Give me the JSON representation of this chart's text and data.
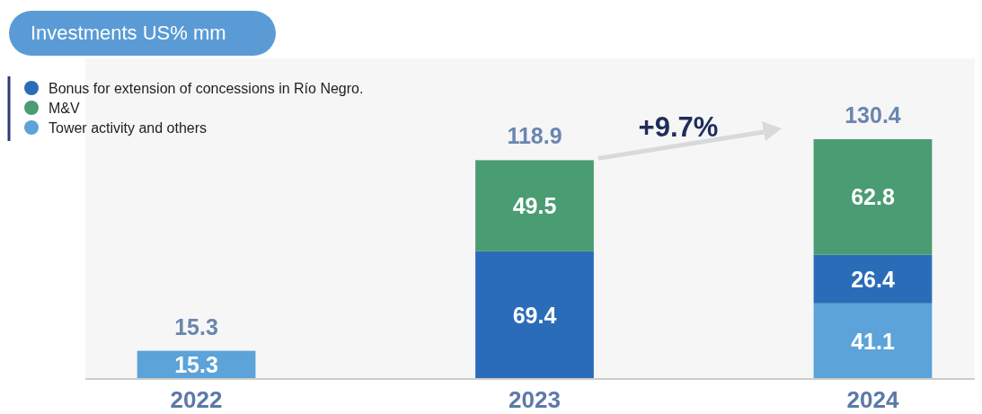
{
  "chart_data": {
    "type": "bar",
    "title": "Investments US% mm",
    "categories": [
      "2022",
      "2023",
      "2024"
    ],
    "stacked": true,
    "data_labels": true,
    "legend": "top left",
    "totals": [
      "15.3",
      "118.9",
      "130.4"
    ],
    "annotations": [
      "+9.7%"
    ],
    "series": [
      {
        "name": "Tower activity and others",
        "color": "#5ba3d9",
        "values": [
          15.3,
          null,
          41.1
        ]
      },
      {
        "name": "Bonus for extension of concessions in Río Negro.",
        "color": "#2b6cb8",
        "values": [
          null,
          69.4,
          26.4
        ]
      },
      {
        "name": "M&V",
        "color": "#4a9c72",
        "values": [
          null,
          49.5,
          62.8
        ]
      }
    ]
  }
}
